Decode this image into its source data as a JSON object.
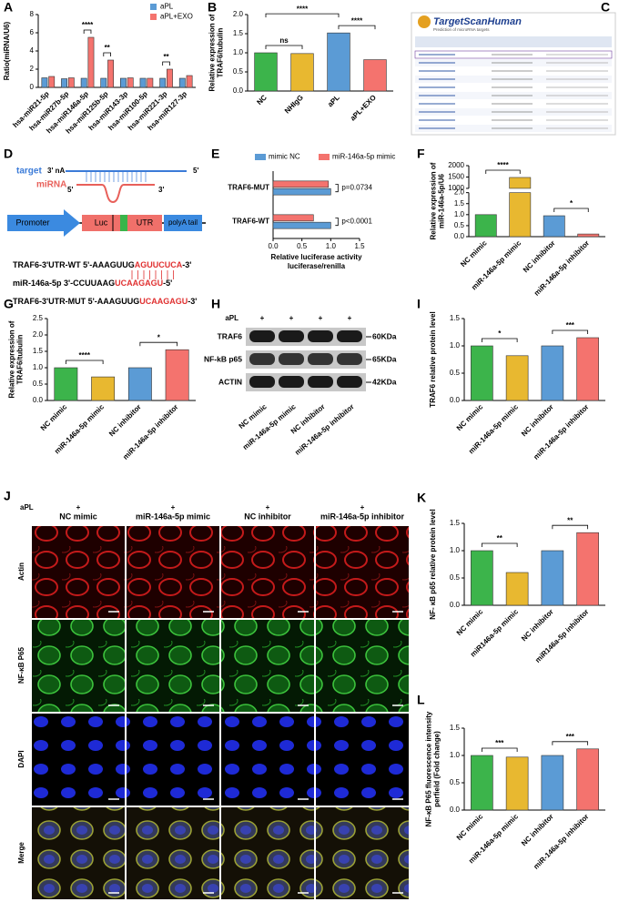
{
  "chart_data": [
    {
      "label": "A",
      "type": "bar",
      "ylabel": [
        "Ratio(miRNA/U6)"
      ],
      "categories": [
        "hsa-miR21-5p",
        "hsa-miR27b-5p",
        "hsa-miR146a-5p",
        "hsa-miR125b-5p",
        "hsa-miR143-3p",
        "hsa-miR100-5p",
        "hsa-miR221-3p",
        "hsa-miR127-3p"
      ],
      "series": [
        {
          "name": "aPL",
          "color": "#5b9bd5",
          "values": [
            1.05,
            0.95,
            1.0,
            1.0,
            1.0,
            1.0,
            1.0,
            1.0
          ]
        },
        {
          "name": "aPL+EXO",
          "color": "#f4736e",
          "values": [
            1.2,
            1.05,
            5.5,
            3.0,
            1.05,
            1.0,
            2.0,
            1.3
          ]
        }
      ],
      "ylim": [
        0,
        8
      ],
      "yticks": [
        0,
        2,
        4,
        6,
        8
      ],
      "legend": "upper right",
      "annotations": [
        {
          "text": "****",
          "from": "hsa-miR146a-5p",
          "to": "hsa-miR146a-5p"
        },
        {
          "text": "**",
          "from": "hsa-miR125b-5p",
          "to": "hsa-miR125b-5p"
        },
        {
          "text": "**",
          "from": "hsa-miR221-3p",
          "to": "hsa-miR221-3p"
        }
      ]
    },
    {
      "label": "B",
      "type": "bar",
      "ylabel": [
        "Relative expression of",
        "TRAF6/tubulin"
      ],
      "categories": [
        "NC",
        "NHIgG",
        "aPL",
        "aPL+EXO"
      ],
      "values": [
        1.0,
        0.98,
        1.52,
        0.82
      ],
      "colors": [
        "#3cb44b",
        "#e8b830",
        "#5b9bd5",
        "#f4736e"
      ],
      "ylim": [
        0,
        2
      ],
      "yticks": [
        {
          "value": 0,
          "label": "0.0"
        },
        {
          "value": 0.5,
          "label": "0.5"
        },
        {
          "value": 1,
          "label": "1.0"
        },
        {
          "value": 1.5,
          "label": "1.5"
        },
        {
          "value": 2,
          "label": "2.0"
        }
      ],
      "annotations": [
        {
          "text": "ns",
          "from": "NC",
          "to": "NHIgG"
        },
        {
          "text": "****",
          "from": "aPL",
          "to": "aPL+EXO"
        },
        {
          "text": "****",
          "from": "NC",
          "to": "aPL"
        }
      ]
    },
    {
      "label": "E",
      "type": "barh",
      "xlabel": [
        "Relative luciferase activity",
        "luciferase/renilla"
      ],
      "categories": [
        "TRAF6-MUT",
        "TRAF6-WT"
      ],
      "series": [
        {
          "name": "mimic NC",
          "color": "#5b9bd5",
          "values": [
            1.0,
            1.0
          ]
        },
        {
          "name": "miR-146a-5p mimic",
          "color": "#f4736e",
          "values": [
            0.96,
            0.7
          ]
        }
      ],
      "xlim": [
        0,
        1.5
      ],
      "xticks": [
        {
          "value": 0,
          "label": "0.0"
        },
        {
          "value": 0.5,
          "label": "0.5"
        },
        {
          "value": 1,
          "label": "1.0"
        },
        {
          "value": 1.5,
          "label": "1.5"
        }
      ],
      "legend": "top",
      "annotations": [
        {
          "text": "p=0.0734",
          "category": "TRAF6-MUT"
        },
        {
          "text": "p<0.0001",
          "category": "TRAF6-WT"
        }
      ]
    },
    {
      "label": "F",
      "type": "bar",
      "ylabel": [
        "Relative expression of",
        "miR-146a-5p/U6"
      ],
      "categories": [
        "NC mimic",
        "miR-146a-5p mimic",
        "NC inhibitor",
        "miR-146a-5p inhibitor"
      ],
      "values": [
        1.0,
        1480,
        0.95,
        0.12
      ],
      "colors": [
        "#3cb44b",
        "#e8b830",
        "#5b9bd5",
        "#f4736e"
      ],
      "ylim": [
        0,
        2000
      ],
      "axis_break": [
        2,
        1000
      ],
      "yticks": [
        {
          "value": 0,
          "label": "0.0"
        },
        {
          "value": 0.5,
          "label": "0.5"
        },
        {
          "value": 1,
          "label": "1.0"
        },
        {
          "value": 1.5,
          "label": "1.5"
        },
        {
          "value": 2,
          "label": "2.0"
        },
        1000,
        1500,
        2000
      ],
      "annotations": [
        {
          "text": "****",
          "from": "NC mimic",
          "to": "miR-146a-5p mimic"
        },
        {
          "text": "*",
          "from": "NC inhibitor",
          "to": "miR-146a-5p inhibitor"
        }
      ]
    },
    {
      "label": "G",
      "type": "bar",
      "ylabel": [
        "Relative expression of",
        "TRAF6/tubulin"
      ],
      "categories": [
        "NC mimic",
        "miR-146a-5p mimic",
        "NC inhibitor",
        "miR-146a-5p inhibitor"
      ],
      "values": [
        1.0,
        0.72,
        1.0,
        1.55
      ],
      "colors": [
        "#3cb44b",
        "#e8b830",
        "#5b9bd5",
        "#f4736e"
      ],
      "ylim": [
        0,
        2.5
      ],
      "yticks": [
        {
          "value": 0,
          "label": "0.0"
        },
        {
          "value": 0.5,
          "label": "0.5"
        },
        {
          "value": 1,
          "label": "1.0"
        },
        {
          "value": 1.5,
          "label": "1.5"
        },
        {
          "value": 2,
          "label": "2.0"
        },
        {
          "value": 2.5,
          "label": "2.5"
        }
      ],
      "annotations": [
        {
          "text": "****",
          "from": "NC mimic",
          "to": "miR-146a-5p mimic"
        },
        {
          "text": "*",
          "from": "NC inhibitor",
          "to": "miR-146a-5p inhibitor"
        }
      ]
    },
    {
      "label": "I",
      "type": "bar",
      "ylabel": [
        "TRAF6 relative protein level"
      ],
      "categories": [
        "NC mimic",
        "miR-146a-5p mimic",
        "NC inhibitor",
        "miR-146a-5p inhibitor"
      ],
      "values": [
        1.0,
        0.82,
        1.0,
        1.15
      ],
      "colors": [
        "#3cb44b",
        "#e8b830",
        "#5b9bd5",
        "#f4736e"
      ],
      "ylim": [
        0,
        1.5
      ],
      "yticks": [
        {
          "value": 0,
          "label": "0.0"
        },
        {
          "value": 0.5,
          "label": "0.5"
        },
        {
          "value": 1,
          "label": "1.0"
        },
        {
          "value": 1.5,
          "label": "1.5"
        }
      ],
      "annotations": [
        {
          "text": "*",
          "from": "NC mimic",
          "to": "miR-146a-5p mimic"
        },
        {
          "text": "***",
          "from": "NC inhibitor",
          "to": "miR-146a-5p inhibitor"
        }
      ]
    },
    {
      "label": "K",
      "type": "bar",
      "ylabel": [
        "NF- κB p65 relative protein level"
      ],
      "categories": [
        "NC mimic",
        "miR146a-5p mimic",
        "NC inhibitor",
        "miR146a-5p inhibitor"
      ],
      "values": [
        1.0,
        0.6,
        1.0,
        1.33
      ],
      "colors": [
        "#3cb44b",
        "#e8b830",
        "#5b9bd5",
        "#f4736e"
      ],
      "ylim": [
        0,
        1.5
      ],
      "yticks": [
        {
          "value": 0,
          "label": "0.0"
        },
        {
          "value": 0.5,
          "label": "0.5"
        },
        {
          "value": 1,
          "label": "1.0"
        },
        {
          "value": 1.5,
          "label": "1.5"
        }
      ],
      "annotations": [
        {
          "text": "**",
          "from": "NC mimic",
          "to": "miR146a-5p mimic"
        },
        {
          "text": "**",
          "from": "NC inhibitor",
          "to": "miR146a-5p inhibitor"
        }
      ]
    },
    {
      "label": "L",
      "type": "bar",
      "ylabel": [
        "NF-κB P65 fluorescence intensity",
        "perfield (Fold change)"
      ],
      "categories": [
        "NC mimic",
        "miR-146a-5p mimic",
        "NC inhibitor",
        "miR-146a-5p inhibitor"
      ],
      "values": [
        1.0,
        0.97,
        1.0,
        1.12
      ],
      "colors": [
        "#3cb44b",
        "#e8b830",
        "#5b9bd5",
        "#f4736e"
      ],
      "ylim": [
        0,
        1.5
      ],
      "yticks": [
        {
          "value": 0,
          "label": "0.0"
        },
        {
          "value": 0.5,
          "label": "0.5"
        },
        {
          "value": 1,
          "label": "1.0"
        },
        {
          "value": 1.5,
          "label": "1.5"
        }
      ],
      "annotations": [
        {
          "text": "***",
          "from": "NC mimic",
          "to": "miR-146a-5p mimic"
        },
        {
          "text": "***",
          "from": "NC inhibitor",
          "to": "miR-146a-5p inhibitor"
        }
      ]
    }
  ],
  "panel_c": {
    "label": "C",
    "title": "TargetScanHuman",
    "subtitle": "Prediction of microRNA targets"
  },
  "panel_d": {
    "label": "D",
    "target": "target",
    "target_3": "3' nA",
    "target_5": "5'",
    "mirna": "miRNA",
    "mirna_5": "5'",
    "mirna_3": "3'",
    "promoter": "Promoter",
    "luc": "Luc",
    "utr": "UTR",
    "polya": "polyA tail",
    "sequences": [
      {
        "prefix": "TRAF6-3'UTR-WT 5'-AAAGUUG",
        "site": "AGUUCUCA",
        "suffix": "-3'"
      },
      {
        "prefix": "miR-146a-5p 3'-CCUUAAG",
        "site": "UCAAGAGU",
        "suffix": "-5'"
      },
      {
        "prefix": "TRAF6-3'UTR-MUT 5'-AAAGUUG",
        "site": "UCAAGAGU",
        "suffix": "-3'"
      }
    ]
  },
  "panel_h": {
    "label": "H",
    "treatment": "aPL",
    "signs": [
      "+",
      "+",
      "+",
      "+"
    ],
    "proteins": [
      {
        "name": "TRAF6",
        "size": "60KDa"
      },
      {
        "name": "NF-kB p65",
        "size": "65KDa"
      },
      {
        "name": "ACTIN",
        "size": "42KDa"
      }
    ],
    "columns": [
      "NC mimic",
      "miR-146a-5p mimic",
      "NC inhibitor",
      "miR-146a-5p inhibitor"
    ]
  },
  "panel_j": {
    "label": "J",
    "treatment": "aPL",
    "signs": [
      "+",
      "+",
      "+",
      "+"
    ],
    "columns": [
      "NC mimic",
      "miR-146a-5p mimic",
      "NC inhibitor",
      "miR-146a-5p inhibitor"
    ],
    "rows": [
      "Actin",
      "NF-κB P65",
      "DAPI",
      "Merge"
    ]
  }
}
